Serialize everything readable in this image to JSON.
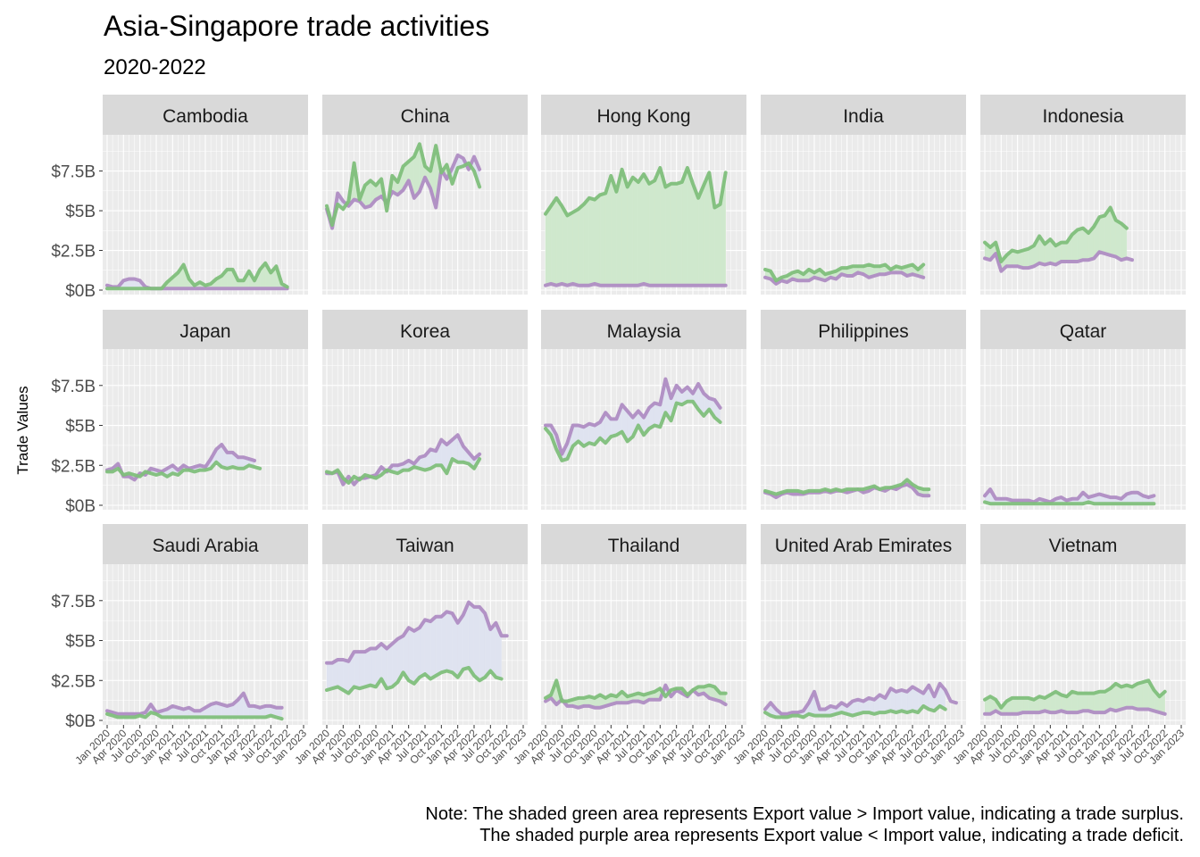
{
  "colors": {
    "export_line": "#7fbf7b",
    "import_line": "#af8dc3",
    "surplus_fill": "#cfe8cd",
    "deficit_fill": "#dfe3f0",
    "panel_bg": "#ebebeb",
    "grid": "#ffffff",
    "strip_bg": "#d9d9d9"
  },
  "chart_data": {
    "type": "line",
    "title": "Asia-Singapore trade activities",
    "subtitle": "2020-2022",
    "ylabel": "Trade Values",
    "xlabel": "",
    "ylim": [
      0,
      9.5
    ],
    "yticks": [
      0,
      2.5,
      5,
      7.5
    ],
    "ytick_labels": [
      "$0B",
      "$2.5B",
      "$5B",
      "$7.5B"
    ],
    "x_tick_labels": [
      "Jan 2020",
      "Apr 2020",
      "Jul 2020",
      "Oct 2020",
      "Jan 2021",
      "Apr 2021",
      "Jul 2021",
      "Oct 2021",
      "Jan 2022",
      "Apr 2022",
      "Jul 2022",
      "Oct 2022",
      "Jan 2023"
    ],
    "x_range_months": [
      0,
      36
    ],
    "series_names": [
      "Export",
      "Import"
    ],
    "panels": [
      {
        "name": "Cambodia",
        "export": [
          0.1,
          0.1,
          0.1,
          0.1,
          0.1,
          0.1,
          0.1,
          0.1,
          0.1,
          0.1,
          0.1,
          0.5,
          0.8,
          1.1,
          1.6,
          0.7,
          0.3,
          0.5,
          0.3,
          0.4,
          0.7,
          0.9,
          1.3,
          1.3,
          0.6,
          0.6,
          1.2,
          0.6,
          1.3,
          1.7,
          1.1,
          1.5,
          0.4,
          0.2
        ],
        "import": [
          0.3,
          0.2,
          0.2,
          0.6,
          0.7,
          0.7,
          0.6,
          0.2,
          0.1,
          0.1,
          0.1,
          0.1,
          0.1,
          0.1,
          0.1,
          0.1,
          0.1,
          0.1,
          0.1,
          0.1,
          0.1,
          0.1,
          0.1,
          0.1,
          0.1,
          0.1,
          0.1,
          0.1,
          0.1,
          0.1,
          0.1,
          0.1,
          0.1,
          0.1
        ]
      },
      {
        "name": "China",
        "export": [
          5.3,
          4.1,
          5.4,
          5.1,
          5.6,
          8.0,
          5.7,
          6.6,
          6.9,
          6.6,
          7.0,
          5.0,
          7.2,
          6.8,
          7.8,
          8.1,
          8.4,
          9.2,
          7.8,
          7.5,
          9.1,
          7.4,
          7.9,
          6.7,
          7.7,
          7.8,
          8.0,
          7.5,
          6.5
        ],
        "import": [
          5.1,
          3.9,
          6.1,
          5.6,
          5.3,
          5.7,
          5.6,
          5.2,
          5.3,
          5.7,
          5.9,
          5.5,
          6.2,
          6.0,
          6.3,
          6.9,
          5.8,
          6.2,
          7.1,
          6.4,
          5.2,
          7.6,
          7.0,
          7.7,
          8.5,
          8.3,
          7.6,
          8.4,
          7.6
        ]
      },
      {
        "name": "Hong Kong",
        "export": [
          4.8,
          5.3,
          5.8,
          5.3,
          4.7,
          4.9,
          5.1,
          5.4,
          5.8,
          5.7,
          6.0,
          6.1,
          7.2,
          6.2,
          7.6,
          6.5,
          7.1,
          6.8,
          7.3,
          6.7,
          6.9,
          7.7,
          6.5,
          6.7,
          6.7,
          6.8,
          7.7,
          6.7,
          5.8,
          6.6,
          7.4,
          5.2,
          5.4,
          7.4
        ],
        "import": [
          0.3,
          0.4,
          0.3,
          0.4,
          0.3,
          0.4,
          0.3,
          0.3,
          0.3,
          0.4,
          0.3,
          0.3,
          0.3,
          0.3,
          0.3,
          0.3,
          0.3,
          0.3,
          0.4,
          0.3,
          0.3,
          0.3,
          0.3,
          0.3,
          0.3,
          0.3,
          0.3,
          0.3,
          0.3,
          0.3,
          0.3,
          0.3,
          0.3,
          0.3
        ]
      },
      {
        "name": "India",
        "export": [
          1.3,
          1.2,
          0.6,
          0.8,
          0.9,
          1.1,
          1.2,
          1.0,
          1.3,
          1.1,
          1.3,
          1.0,
          1.1,
          1.2,
          1.4,
          1.4,
          1.5,
          1.5,
          1.5,
          1.6,
          1.5,
          1.5,
          1.6,
          1.3,
          1.5,
          1.4,
          1.5,
          1.6,
          1.3,
          1.6
        ],
        "import": [
          0.8,
          0.7,
          0.4,
          0.6,
          0.5,
          0.7,
          0.6,
          0.6,
          0.6,
          0.8,
          0.7,
          0.6,
          0.8,
          0.7,
          1.0,
          0.9,
          0.9,
          1.1,
          1.0,
          0.8,
          0.9,
          1.0,
          1.0,
          1.1,
          1.1,
          1.1,
          0.9,
          1.0,
          0.9,
          0.8
        ]
      },
      {
        "name": "Indonesia",
        "export": [
          3.0,
          2.7,
          3.0,
          1.8,
          2.2,
          2.5,
          2.4,
          2.5,
          2.6,
          2.8,
          3.4,
          2.9,
          3.2,
          2.8,
          3.0,
          3.0,
          3.5,
          3.8,
          3.9,
          3.6,
          4.0,
          4.6,
          4.7,
          5.2,
          4.4,
          4.2,
          3.9
        ],
        "import": [
          2.0,
          1.9,
          2.3,
          1.2,
          1.5,
          1.5,
          1.5,
          1.4,
          1.4,
          1.5,
          1.7,
          1.6,
          1.7,
          1.6,
          1.8,
          1.8,
          1.8,
          1.8,
          1.9,
          1.9,
          2.0,
          2.4,
          2.3,
          2.2,
          2.1,
          1.9,
          2.0,
          1.9
        ]
      },
      {
        "name": "Japan",
        "export": [
          2.1,
          2.1,
          2.3,
          1.9,
          2.0,
          1.9,
          1.8,
          2.1,
          2.0,
          1.9,
          2.0,
          1.8,
          2.0,
          1.9,
          2.2,
          2.2,
          2.1,
          2.2,
          2.2,
          2.3,
          2.7,
          2.4,
          2.3,
          2.4,
          2.3,
          2.3,
          2.5,
          2.4,
          2.3
        ],
        "import": [
          2.2,
          2.3,
          2.6,
          1.8,
          1.8,
          1.6,
          2.0,
          1.9,
          2.3,
          2.2,
          2.1,
          2.3,
          2.5,
          2.2,
          2.5,
          2.3,
          2.4,
          2.5,
          2.4,
          2.9,
          3.5,
          3.8,
          3.3,
          3.3,
          3.0,
          3.0,
          2.9,
          2.8
        ]
      },
      {
        "name": "Korea",
        "export": [
          2.1,
          2.0,
          2.2,
          1.7,
          1.4,
          1.8,
          1.6,
          1.9,
          1.8,
          1.7,
          1.9,
          2.2,
          2.1,
          2.0,
          2.2,
          2.2,
          2.4,
          2.3,
          2.2,
          2.3,
          2.5,
          2.5,
          2.0,
          2.9,
          2.7,
          2.7,
          2.6,
          2.3,
          2.9
        ],
        "import": [
          2.0,
          2.0,
          2.1,
          1.3,
          1.8,
          1.3,
          1.7,
          1.7,
          1.8,
          1.9,
          2.4,
          2.1,
          2.5,
          2.5,
          2.6,
          2.8,
          2.6,
          3.0,
          3.1,
          3.5,
          3.4,
          4.1,
          3.8,
          4.1,
          4.4,
          3.7,
          3.3,
          2.9,
          3.2
        ]
      },
      {
        "name": "Malaysia",
        "export": [
          4.8,
          4.4,
          3.5,
          2.8,
          2.9,
          3.7,
          4.0,
          3.7,
          3.9,
          3.8,
          4.2,
          3.9,
          4.3,
          4.4,
          4.6,
          4.0,
          4.3,
          5.0,
          4.4,
          4.8,
          5.0,
          4.9,
          5.8,
          5.3,
          6.4,
          6.3,
          6.5,
          6.5,
          6.0,
          5.6,
          6.0,
          5.5,
          5.2
        ],
        "import": [
          5.0,
          5.0,
          4.4,
          3.2,
          3.9,
          5.0,
          5.0,
          4.9,
          5.1,
          5.0,
          5.2,
          5.8,
          5.4,
          5.4,
          6.3,
          5.9,
          5.5,
          5.9,
          5.5,
          6.1,
          6.4,
          6.3,
          7.9,
          6.7,
          7.5,
          7.1,
          7.4,
          7.0,
          7.6,
          7.0,
          6.7,
          6.6,
          6.1
        ]
      },
      {
        "name": "Philippines",
        "export": [
          0.9,
          0.8,
          0.7,
          0.8,
          0.9,
          0.9,
          0.9,
          0.8,
          0.9,
          0.9,
          0.9,
          1.0,
          0.9,
          1.0,
          0.9,
          1.0,
          1.0,
          1.0,
          1.0,
          1.1,
          1.2,
          1.0,
          1.1,
          1.1,
          1.2,
          1.3,
          1.6,
          1.3,
          1.1,
          1.0,
          1.0
        ],
        "import": [
          0.8,
          0.7,
          0.5,
          0.7,
          0.8,
          0.7,
          0.7,
          0.7,
          0.8,
          0.8,
          0.8,
          0.9,
          0.8,
          0.9,
          0.9,
          0.8,
          0.9,
          1.0,
          0.8,
          0.9,
          1.1,
          1.0,
          0.9,
          1.1,
          1.0,
          1.2,
          1.3,
          1.1,
          0.7,
          0.6,
          0.6
        ]
      },
      {
        "name": "Qatar",
        "export": [
          0.2,
          0.1,
          0.1,
          0.1,
          0.1,
          0.1,
          0.1,
          0.1,
          0.1,
          0.1,
          0.1,
          0.1,
          0.1,
          0.1,
          0.1,
          0.1,
          0.1,
          0.1,
          0.1,
          0.2,
          0.1,
          0.1,
          0.1,
          0.1,
          0.1,
          0.1,
          0.1,
          0.1,
          0.1,
          0.1,
          0.1,
          0.1
        ],
        "import": [
          0.6,
          1.0,
          0.4,
          0.4,
          0.4,
          0.3,
          0.3,
          0.3,
          0.3,
          0.2,
          0.4,
          0.3,
          0.2,
          0.4,
          0.5,
          0.3,
          0.4,
          0.4,
          0.8,
          0.5,
          0.6,
          0.7,
          0.6,
          0.5,
          0.5,
          0.4,
          0.7,
          0.8,
          0.8,
          0.6,
          0.5,
          0.6
        ]
      },
      {
        "name": "Saudi Arabia",
        "export": [
          0.4,
          0.3,
          0.2,
          0.2,
          0.2,
          0.2,
          0.3,
          0.2,
          0.5,
          0.4,
          0.2,
          0.2,
          0.2,
          0.2,
          0.2,
          0.2,
          0.2,
          0.2,
          0.2,
          0.2,
          0.2,
          0.2,
          0.2,
          0.2,
          0.2,
          0.2,
          0.2,
          0.2,
          0.2,
          0.2,
          0.3,
          0.2,
          0.1
        ],
        "import": [
          0.6,
          0.5,
          0.4,
          0.4,
          0.4,
          0.4,
          0.4,
          0.5,
          1.0,
          0.5,
          0.6,
          0.7,
          0.9,
          0.8,
          0.7,
          0.8,
          0.6,
          0.6,
          0.8,
          1.0,
          1.1,
          1.0,
          0.9,
          1.0,
          1.3,
          1.7,
          0.9,
          0.9,
          0.8,
          0.9,
          0.9,
          0.8,
          0.8
        ]
      },
      {
        "name": "Taiwan",
        "export": [
          1.9,
          2.0,
          2.1,
          1.9,
          1.7,
          2.1,
          2.0,
          2.1,
          2.2,
          2.1,
          2.6,
          2.0,
          2.1,
          2.4,
          3.0,
          2.5,
          2.3,
          2.7,
          2.9,
          2.6,
          2.8,
          3.0,
          3.1,
          3.0,
          2.7,
          3.2,
          3.3,
          2.8,
          2.5,
          2.7,
          3.1,
          2.7,
          2.6
        ],
        "import": [
          3.6,
          3.6,
          3.8,
          3.8,
          3.7,
          4.3,
          4.3,
          4.3,
          4.5,
          4.5,
          4.8,
          4.5,
          4.8,
          5.1,
          5.3,
          5.8,
          5.6,
          5.8,
          6.3,
          6.2,
          6.5,
          6.5,
          6.8,
          6.7,
          6.1,
          6.6,
          7.4,
          7.1,
          7.1,
          6.7,
          5.7,
          6.1,
          5.3,
          5.3
        ]
      },
      {
        "name": "Thailand",
        "export": [
          1.4,
          1.6,
          2.5,
          1.2,
          1.2,
          1.3,
          1.4,
          1.4,
          1.5,
          1.4,
          1.6,
          1.4,
          1.6,
          1.5,
          1.8,
          1.5,
          1.6,
          1.7,
          1.6,
          1.7,
          1.8,
          2.0,
          1.5,
          1.9,
          2.0,
          2.0,
          1.6,
          1.9,
          2.1,
          2.1,
          2.2,
          2.1,
          1.7,
          1.7
        ],
        "import": [
          1.2,
          1.4,
          1.0,
          1.3,
          0.9,
          0.9,
          0.8,
          0.9,
          0.9,
          0.8,
          0.8,
          0.9,
          1.0,
          1.1,
          1.1,
          1.1,
          1.2,
          1.2,
          1.1,
          1.3,
          1.3,
          1.3,
          2.2,
          1.5,
          1.9,
          1.7,
          1.5,
          1.9,
          1.6,
          1.7,
          1.4,
          1.3,
          1.2,
          1.0
        ]
      },
      {
        "name": "United Arab Emirates",
        "export": [
          0.5,
          0.3,
          0.2,
          0.2,
          0.2,
          0.3,
          0.3,
          0.2,
          0.4,
          0.3,
          0.3,
          0.3,
          0.3,
          0.4,
          0.5,
          0.4,
          0.3,
          0.4,
          0.5,
          0.5,
          0.4,
          0.5,
          0.5,
          0.6,
          0.5,
          0.6,
          0.5,
          0.6,
          0.5,
          0.9,
          0.7,
          0.6,
          0.9,
          0.7
        ],
        "import": [
          0.7,
          1.1,
          0.7,
          0.4,
          0.4,
          0.5,
          0.5,
          0.6,
          1.1,
          1.8,
          0.7,
          0.7,
          0.9,
          0.8,
          1.1,
          0.9,
          1.2,
          1.3,
          1.2,
          1.4,
          1.3,
          1.6,
          1.4,
          2.0,
          1.8,
          1.9,
          1.8,
          2.1,
          1.9,
          1.7,
          2.2,
          1.5,
          2.3,
          1.9,
          1.2,
          1.1
        ]
      },
      {
        "name": "Vietnam",
        "export": [
          1.3,
          1.5,
          1.3,
          0.8,
          1.2,
          1.4,
          1.4,
          1.4,
          1.4,
          1.3,
          1.5,
          1.4,
          1.6,
          1.8,
          1.6,
          1.5,
          1.8,
          1.7,
          1.7,
          1.7,
          1.7,
          1.8,
          1.8,
          2.0,
          2.3,
          2.1,
          2.2,
          2.1,
          2.3,
          2.4,
          2.5,
          1.9,
          1.5,
          1.8
        ],
        "import": [
          0.4,
          0.4,
          0.6,
          0.4,
          0.4,
          0.4,
          0.4,
          0.5,
          0.5,
          0.5,
          0.5,
          0.6,
          0.5,
          0.5,
          0.6,
          0.5,
          0.5,
          0.5,
          0.6,
          0.6,
          0.5,
          0.5,
          0.5,
          0.7,
          0.6,
          0.7,
          0.8,
          0.8,
          0.7,
          0.7,
          0.7,
          0.6,
          0.5,
          0.4
        ]
      }
    ],
    "caption_lines": [
      "Note: The shaded green area represents Export value > Import value, indicating a trade surplus.",
      "The shaded purple area represents Export value < Import value, indicating a trade deficit."
    ]
  }
}
